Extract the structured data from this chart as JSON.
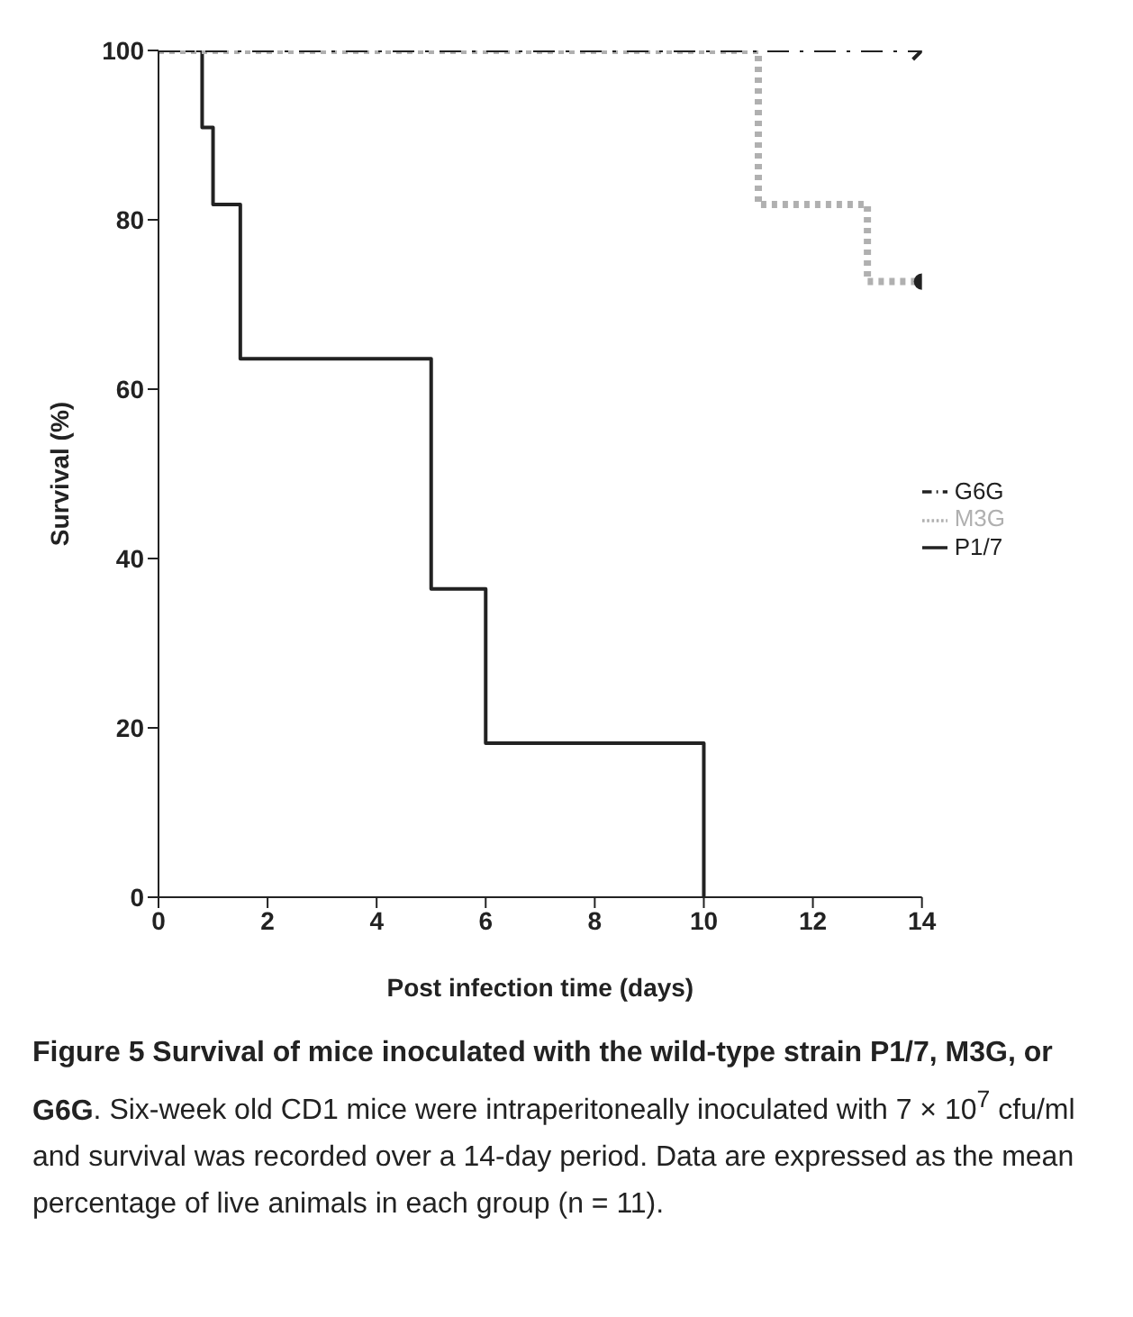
{
  "chart_data": {
    "type": "step",
    "title": "Figure 5 Survival of mice inoculated with the wild-type strain P1/7, M3G, or G6G",
    "xlabel": "Post infection time (days)",
    "ylabel": "Survival (%)",
    "annotations": [
      ". Six-week old CD1 mice were intraperitoneally inoculated with 7 × 10$^{7}$ cfu/ml and survival was recorded over a 14-day period. Data are expressed as the mean percentage of live animals in each group (n = 11)."
    ],
    "series": [
      {
        "name": "P1/7",
        "color": "#222222",
        "line_style": "solid",
        "x": [
          0,
          0.8,
          1,
          1.5,
          5,
          6,
          10
        ],
        "values": [
          100,
          90.9,
          81.8,
          63.6,
          36.4,
          18.2,
          0
        ]
      },
      {
        "name": "M3G",
        "color": "#b0b0b0",
        "line_style": "dotted",
        "x": [
          0,
          11,
          13,
          14
        ],
        "values": [
          100,
          81.8,
          72.7,
          72.7
        ]
      },
      {
        "name": "G6G",
        "color": "#222222",
        "line_style": "dashed",
        "x": [
          0,
          14
        ],
        "values": [
          100,
          100
        ]
      },
      {
        "type": "scatter",
        "color": "#222222",
        "marker": "circle",
        "x": [
          14
        ],
        "values": [
          72.7
        ]
      },
      {
        "type": "scatter",
        "color": "#222222",
        "marker": "cross",
        "x": [
          14
        ],
        "values": [
          100
        ]
      }
    ],
    "xlim": [
      0,
      14
    ],
    "xticks": [
      0,
      2,
      4,
      6,
      8,
      10,
      12,
      14
    ],
    "ylim": [
      0,
      100
    ],
    "yticks": [
      0,
      20,
      40,
      60,
      80,
      100
    ],
    "grid": false,
    "legend": "right"
  }
}
